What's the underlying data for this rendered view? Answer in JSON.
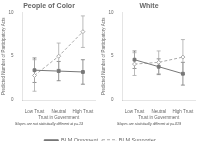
{
  "chart_data": [
    {
      "type": "line",
      "title": "People of Color",
      "x_label": "Trust in Government",
      "y_label": "Predicted Number of Participatory Acts",
      "annotation": "Slopes are not statistically different at p=.13",
      "categories": [
        "Low Trust",
        "Neutral",
        "High Trust"
      ],
      "ylim": [
        0,
        10
      ],
      "yticks": [
        0,
        5,
        10
      ],
      "grid": false,
      "legend": "bottom",
      "series": [
        {
          "name": "BLM Opponent",
          "color": "#777777",
          "values": [
            3.4,
            3.3,
            3.2
          ],
          "yerr": [
            1.4,
            1.1,
            1.4
          ],
          "marker": "square",
          "line_style": "solid"
        },
        {
          "name": "BLM Supporter",
          "color": "#aaaaaa",
          "values": [
            2.8,
            5.0,
            7.8
          ],
          "yerr": [
            1.8,
            1.5,
            1.8
          ],
          "marker": "diamond",
          "line_style": "dashed"
        }
      ]
    },
    {
      "type": "line",
      "title": "White",
      "x_label": "Trust in Government",
      "y_label": "Predicted Number of Participatory Acts",
      "annotation": "Slopes are statistically different at p=.019",
      "categories": [
        "Low Trust",
        "Neutral",
        "High Trust"
      ],
      "ylim": [
        0,
        10
      ],
      "yticks": [
        0,
        5,
        10
      ],
      "grid": false,
      "legend": "bottom",
      "series": [
        {
          "name": "BLM Opponent",
          "color": "#777777",
          "values": [
            4.6,
            3.8,
            3.0
          ],
          "yerr": [
            1.0,
            0.9,
            1.3
          ],
          "marker": "square",
          "line_style": "solid"
        },
        {
          "name": "BLM Supporter",
          "color": "#aaaaaa",
          "values": [
            4.1,
            4.3,
            4.9
          ],
          "yerr": [
            1.3,
            1.3,
            2.0
          ],
          "marker": "diamond",
          "line_style": "dashed"
        }
      ]
    }
  ]
}
